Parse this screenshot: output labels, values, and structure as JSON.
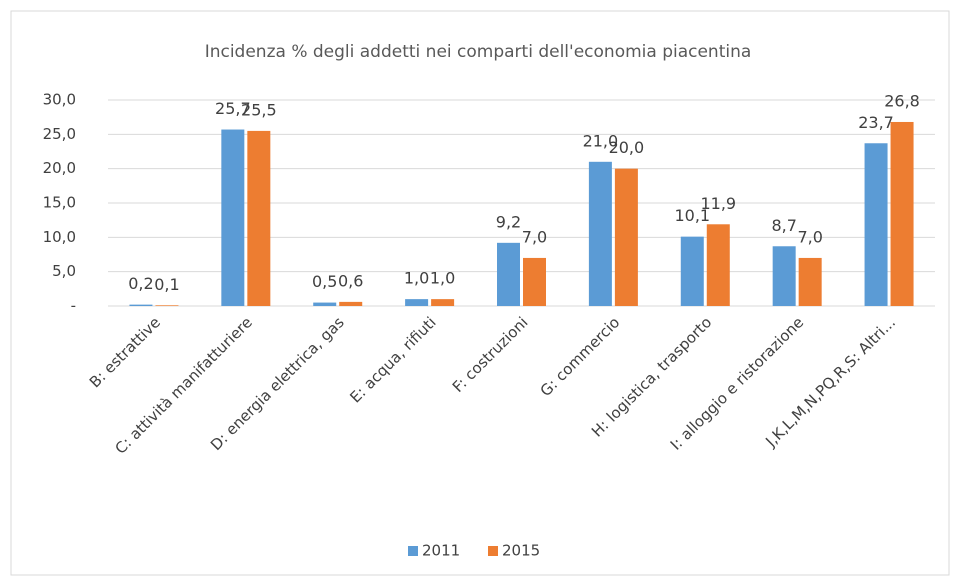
{
  "chart_data": {
    "type": "bar",
    "title": "Incidenza % degli addetti nei comparti dell'economia piacentina",
    "categories": [
      "B: estrattive",
      "C: attività manifatturiere",
      "D: energia elettrica, gas",
      "E: acqua, rifiuti",
      "F: costruzioni",
      "G: commercio",
      "H: logistica, trasporto",
      "I: alloggio e ristorazione",
      "J,K,L,M,N,PQ,R,S: Altri..."
    ],
    "series": [
      {
        "name": "2011",
        "color": "#5b9bd5",
        "values": [
          0.2,
          25.7,
          0.5,
          1.0,
          9.2,
          21.0,
          10.1,
          8.7,
          23.7
        ],
        "value_labels": [
          "0,2",
          "25,7",
          "0,5",
          "1,0",
          "9,2",
          "21,0",
          "10,1",
          "8,7",
          "23,7"
        ]
      },
      {
        "name": "2015",
        "color": "#ed7d31",
        "values": [
          0.1,
          25.5,
          0.6,
          1.0,
          7.0,
          20.0,
          11.9,
          7.0,
          26.8
        ],
        "value_labels": [
          "0,1",
          "25,5",
          "0,6",
          "1,0",
          "7,0",
          "20,0",
          "11,9",
          "7,0",
          "26,8"
        ]
      }
    ],
    "ylim": [
      0,
      30
    ],
    "yticks": [
      {
        "value": 0,
        "label": "-"
      },
      {
        "value": 5,
        "label": "5,0"
      },
      {
        "value": 10,
        "label": "10,0"
      },
      {
        "value": 15,
        "label": "15,0"
      },
      {
        "value": 20,
        "label": "20,0"
      },
      {
        "value": 25,
        "label": "25,0"
      },
      {
        "value": 30,
        "label": "30,0"
      }
    ],
    "grid": true,
    "legend": "bottom"
  }
}
